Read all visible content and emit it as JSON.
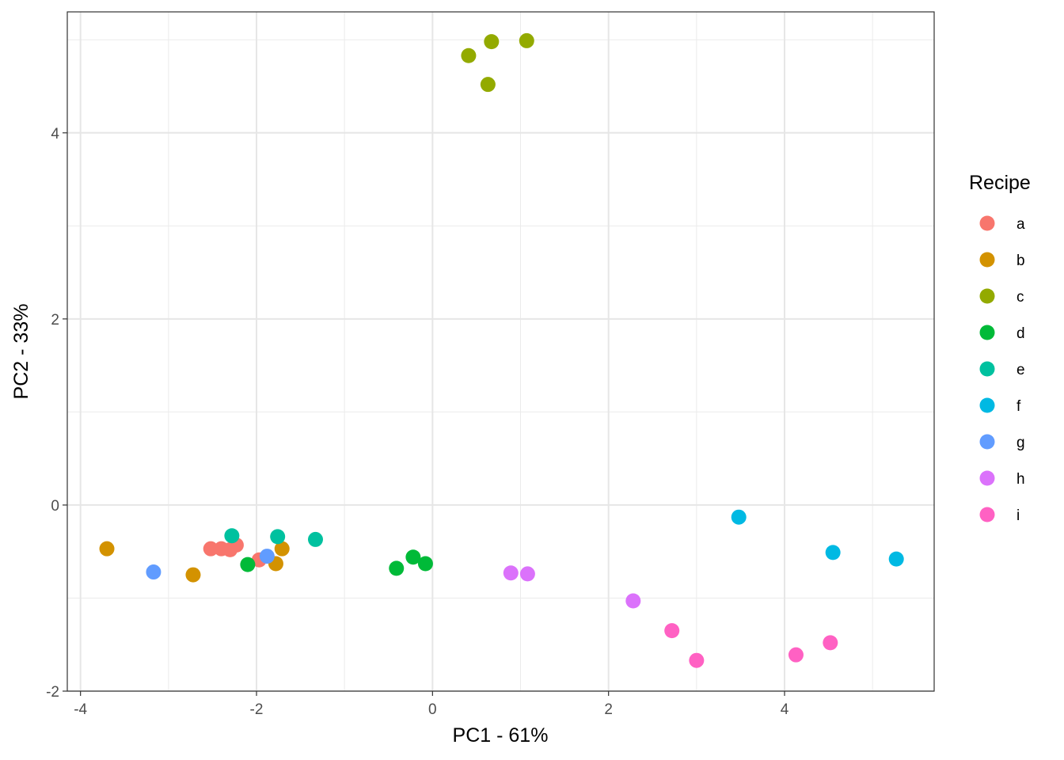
{
  "chart_data": {
    "type": "scatter",
    "xlabel": "PC1 - 61%",
    "ylabel": "PC2 - 33%",
    "xlim": [
      -4.15,
      5.7
    ],
    "ylim": [
      -2.0,
      5.3
    ],
    "x_ticks": [
      -4,
      -2,
      0,
      2,
      4
    ],
    "x_tick_labels": [
      "-4",
      "-2",
      "0",
      "2",
      "4"
    ],
    "y_ticks": [
      -2,
      0,
      2,
      4
    ],
    "y_tick_labels": [
      "-2",
      "0",
      "2",
      "4"
    ],
    "grid": true,
    "legend": {
      "title": "Recipe",
      "position": "right"
    },
    "series": [
      {
        "name": "a",
        "color": "#F8766D",
        "points": [
          [
            -2.52,
            -0.47
          ],
          [
            -2.4,
            -0.47
          ],
          [
            -2.3,
            -0.48
          ],
          [
            -2.23,
            -0.43
          ],
          [
            -1.97,
            -0.59
          ]
        ]
      },
      {
        "name": "b",
        "color": "#D39200",
        "points": [
          [
            -3.7,
            -0.47
          ],
          [
            -2.72,
            -0.75
          ],
          [
            -1.78,
            -0.63
          ],
          [
            -1.71,
            -0.47
          ]
        ]
      },
      {
        "name": "c",
        "color": "#93AA00",
        "points": [
          [
            0.41,
            4.83
          ],
          [
            0.63,
            4.52
          ],
          [
            0.67,
            4.98
          ],
          [
            1.07,
            4.99
          ]
        ]
      },
      {
        "name": "d",
        "color": "#00BA38",
        "points": [
          [
            -2.1,
            -0.64
          ],
          [
            -0.41,
            -0.68
          ],
          [
            -0.22,
            -0.56
          ],
          [
            -0.08,
            -0.63
          ]
        ]
      },
      {
        "name": "e",
        "color": "#00C19F",
        "points": [
          [
            -2.28,
            -0.33
          ],
          [
            -1.76,
            -0.34
          ],
          [
            -1.33,
            -0.37
          ]
        ]
      },
      {
        "name": "f",
        "color": "#00B9E3",
        "points": [
          [
            3.48,
            -0.13
          ],
          [
            4.55,
            -0.51
          ],
          [
            5.27,
            -0.58
          ]
        ]
      },
      {
        "name": "g",
        "color": "#619CFF",
        "points": [
          [
            -3.17,
            -0.72
          ],
          [
            -1.88,
            -0.55
          ]
        ]
      },
      {
        "name": "h",
        "color": "#DB72FB",
        "points": [
          [
            0.89,
            -0.73
          ],
          [
            1.08,
            -0.74
          ],
          [
            2.28,
            -1.03
          ]
        ]
      },
      {
        "name": "i",
        "color": "#FF61C3",
        "points": [
          [
            2.72,
            -1.35
          ],
          [
            3.0,
            -1.67
          ],
          [
            4.13,
            -1.61
          ],
          [
            4.52,
            -1.48
          ]
        ]
      }
    ]
  }
}
